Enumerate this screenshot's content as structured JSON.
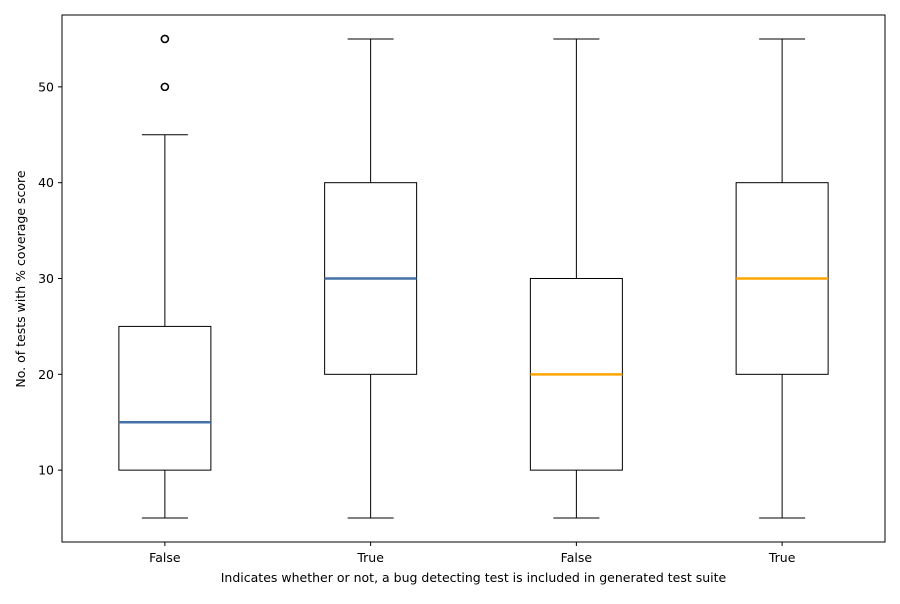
{
  "chart_data": {
    "type": "box",
    "title": "",
    "xlabel": "Indicates whether or not, a bug detecting test is included in generated test suite",
    "ylabel": "No. of tests with % coverage score",
    "ylim": [
      2.5,
      57.5
    ],
    "yticks": [
      10,
      20,
      30,
      40,
      50
    ],
    "grid": false,
    "categories": [
      "False",
      "True",
      "False",
      "True"
    ],
    "boxes": [
      {
        "label": "False",
        "whisker_low": 5,
        "q1": 10,
        "median": 15,
        "q3": 25,
        "whisker_high": 45,
        "outliers": [
          50,
          55
        ],
        "median_color": "#4472a8"
      },
      {
        "label": "True",
        "whisker_low": 5,
        "q1": 20,
        "median": 30,
        "q3": 40,
        "whisker_high": 55,
        "outliers": [],
        "median_color": "#4472a8"
      },
      {
        "label": "False",
        "whisker_low": 5,
        "q1": 10,
        "median": 20,
        "q3": 30,
        "whisker_high": 55,
        "outliers": [],
        "median_color": "#ffa500"
      },
      {
        "label": "True",
        "whisker_low": 5,
        "q1": 20,
        "median": 30,
        "q3": 40,
        "whisker_high": 55,
        "outliers": [],
        "median_color": "#ffa500"
      }
    ]
  }
}
